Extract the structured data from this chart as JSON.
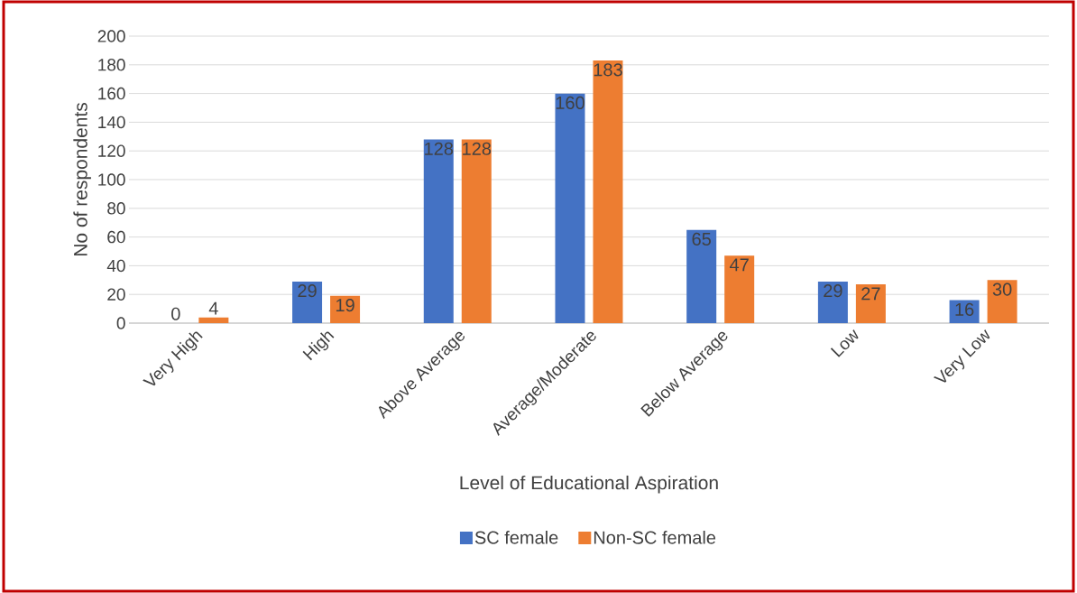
{
  "chart_data": {
    "type": "bar",
    "xlabel": "Level of Educational Aspiration",
    "ylabel": "No of respondents",
    "categories": [
      "Very High",
      "High",
      "Above Average",
      "Average/Moderate",
      "Below Average",
      "Low",
      "Very Low"
    ],
    "series": [
      {
        "name": "SC female",
        "color": "#4472c4",
        "values": [
          0,
          29,
          128,
          160,
          65,
          29,
          16
        ]
      },
      {
        "name": "Non-SC female",
        "color": "#ed7d31",
        "values": [
          4,
          19,
          128,
          183,
          47,
          27,
          30
        ]
      }
    ],
    "ylim": [
      0,
      200
    ],
    "yticks": [
      0,
      20,
      40,
      60,
      80,
      100,
      120,
      140,
      160,
      180,
      200
    ],
    "grid": "y",
    "legend": "bottom",
    "data_labels": true
  }
}
